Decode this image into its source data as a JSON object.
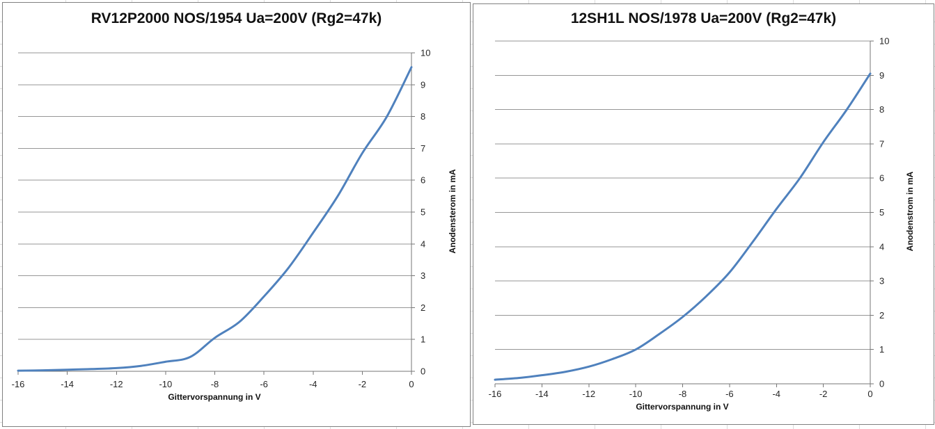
{
  "palette": {
    "series_line": "#4F81BD",
    "plot_gridline": "#969696",
    "axis_line": "#767676",
    "chart_border": "#808080",
    "sheet_gridline": "#dcdcdc",
    "text": "#262626"
  },
  "chart_data": [
    {
      "type": "line",
      "title": "RV12P2000 NOS/1954 Ua=200V (Rg2=47k)",
      "xlabel": "Gittervorspannung in V",
      "ylabel": "Anodensterom in mA",
      "xlim": [
        -16,
        0
      ],
      "ylim": [
        0,
        10
      ],
      "x_ticks": [
        -16,
        -14,
        -12,
        -10,
        -8,
        -6,
        -4,
        -2,
        0
      ],
      "y_ticks": [
        0,
        1,
        2,
        3,
        4,
        5,
        6,
        7,
        8,
        9,
        10
      ],
      "grid": "horizontal",
      "legend": "none",
      "y_axis_side": "right",
      "smooth_line": true,
      "x": [
        -16,
        -15,
        -14,
        -13,
        -12,
        -11,
        -10,
        -9,
        -8,
        -7,
        -6,
        -5,
        -4,
        -3,
        -2,
        -1,
        0
      ],
      "values": [
        0.02,
        0.03,
        0.05,
        0.07,
        0.1,
        0.17,
        0.3,
        0.45,
        1.05,
        1.55,
        2.35,
        3.25,
        4.35,
        5.5,
        6.85,
        8.0,
        9.55
      ]
    },
    {
      "type": "line",
      "title": "12SH1L NOS/1978 Ua=200V (Rg2=47k)",
      "xlabel": "Gittervorspannung in V",
      "ylabel": "Anodenstrom in mA",
      "xlim": [
        -16,
        0
      ],
      "ylim": [
        0,
        10
      ],
      "x_ticks": [
        -16,
        -14,
        -12,
        -10,
        -8,
        -6,
        -4,
        -2,
        0
      ],
      "y_ticks": [
        0,
        1,
        2,
        3,
        4,
        5,
        6,
        7,
        8,
        9,
        10
      ],
      "grid": "horizontal",
      "legend": "none",
      "y_axis_side": "right",
      "smooth_line": true,
      "x": [
        -16,
        -15,
        -14,
        -13,
        -12,
        -11,
        -10,
        -9,
        -8,
        -7,
        -6,
        -5,
        -4,
        -3,
        -2,
        -1,
        0
      ],
      "values": [
        0.12,
        0.17,
        0.25,
        0.35,
        0.5,
        0.72,
        1.0,
        1.45,
        1.95,
        2.55,
        3.25,
        4.15,
        5.1,
        6.0,
        7.05,
        8.0,
        9.05
      ]
    }
  ]
}
